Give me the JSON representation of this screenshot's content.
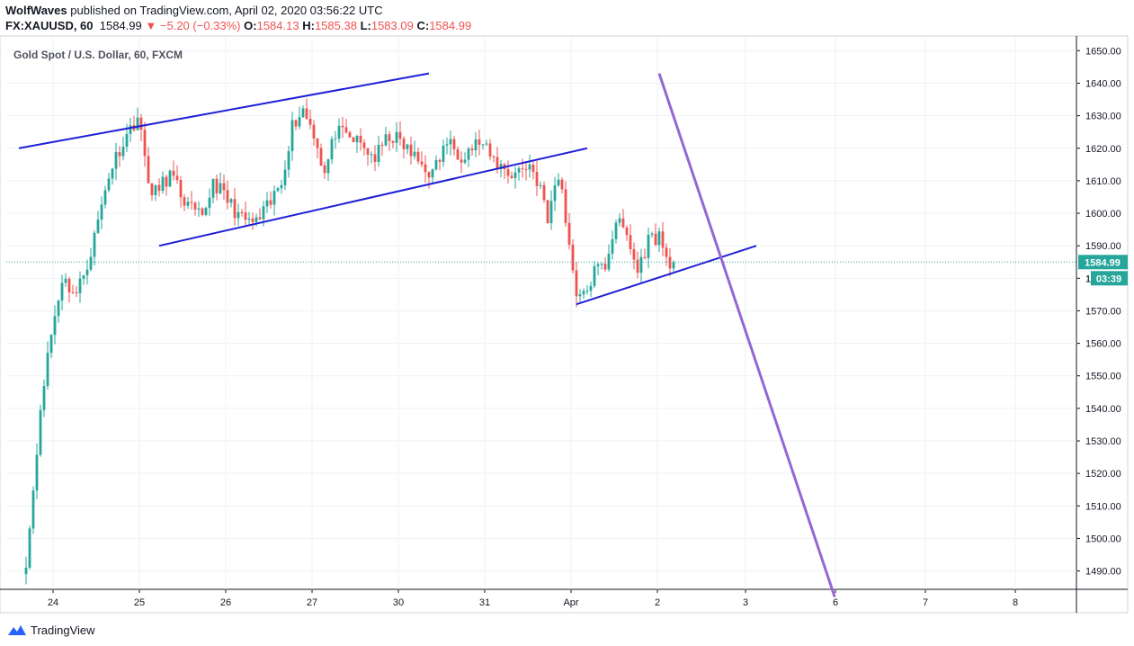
{
  "header": {
    "author": "WolfWaves",
    "published_text": "published on TradingView.com, April 02, 2020 03:56:22 UTC",
    "symbol": "FX:XAUUSD, 60",
    "last": "1584.99",
    "change_arrow": "▼",
    "change": "−5.20 (−0.33%)",
    "o_label": "O:",
    "o_value": "1584.13",
    "h_label": "H:",
    "h_value": "1585.38",
    "l_label": "L:",
    "l_value": "1583.09",
    "c_label": "C:",
    "c_value": "1584.99"
  },
  "footer": {
    "brand": "TradingView"
  },
  "colors": {
    "up": "#26a69a",
    "down": "#ef5350",
    "trendline": "#1f1fd6",
    "projection": "#9567d2",
    "price_line": "#26a69a",
    "grid": "#eef1f5"
  },
  "chart_data": {
    "type": "candlestick",
    "title": "Gold Spot / U.S. Dollar, 60, FXCM",
    "ylim": [
      1482,
      1652
    ],
    "y_ticks": [
      "1650.00",
      "1640.00",
      "1630.00",
      "1620.00",
      "1610.00",
      "1600.00",
      "1590.00",
      "1580.00",
      "1570.00",
      "1560.00",
      "1550.00",
      "1540.00",
      "1530.00",
      "1520.00",
      "1510.00",
      "1500.00",
      "1490.00"
    ],
    "x_ticks": [
      {
        "label": "24",
        "bar": 7.5
      },
      {
        "label": "25",
        "bar": 31.5
      },
      {
        "label": "26",
        "bar": 55.5
      },
      {
        "label": "27",
        "bar": 79.5
      },
      {
        "label": "30",
        "bar": 103.5
      },
      {
        "label": "31",
        "bar": 127.5
      },
      {
        "label": "Apr",
        "bar": 151.5
      },
      {
        "label": "2",
        "bar": 175.5
      },
      {
        "label": "3",
        "bar": 200.0
      },
      {
        "label": "6",
        "bar": 225.0
      },
      {
        "label": "7",
        "bar": 250.0
      },
      {
        "label": "8",
        "bar": 275.0
      }
    ],
    "last_price": 1584.99,
    "last_price_label": "1584.99",
    "countdown_label": "03:39",
    "countdown_prefix": "1",
    "anchors": [
      {
        "bar": 0,
        "price": 1491
      },
      {
        "bar": 3,
        "price": 1528
      },
      {
        "bar": 6,
        "price": 1557
      },
      {
        "bar": 10,
        "price": 1580
      },
      {
        "bar": 14,
        "price": 1575
      },
      {
        "bar": 18,
        "price": 1588
      },
      {
        "bar": 23,
        "price": 1612
      },
      {
        "bar": 26,
        "price": 1620
      },
      {
        "bar": 31,
        "price": 1630
      },
      {
        "bar": 35,
        "price": 1605
      },
      {
        "bar": 40,
        "price": 1612
      },
      {
        "bar": 45,
        "price": 1602
      },
      {
        "bar": 49,
        "price": 1598
      },
      {
        "bar": 52,
        "price": 1610
      },
      {
        "bar": 56,
        "price": 1604
      },
      {
        "bar": 60,
        "price": 1598
      },
      {
        "bar": 64,
        "price": 1597
      },
      {
        "bar": 68,
        "price": 1603
      },
      {
        "bar": 71,
        "price": 1610
      },
      {
        "bar": 74,
        "price": 1627
      },
      {
        "bar": 77,
        "price": 1632
      },
      {
        "bar": 80,
        "price": 1625
      },
      {
        "bar": 83,
        "price": 1612
      },
      {
        "bar": 86,
        "price": 1625
      },
      {
        "bar": 92,
        "price": 1622
      },
      {
        "bar": 97,
        "price": 1617
      },
      {
        "bar": 101,
        "price": 1624
      },
      {
        "bar": 104,
        "price": 1622
      },
      {
        "bar": 108,
        "price": 1617
      },
      {
        "bar": 113,
        "price": 1612
      },
      {
        "bar": 117,
        "price": 1622
      },
      {
        "bar": 121,
        "price": 1618
      },
      {
        "bar": 126,
        "price": 1622
      },
      {
        "bar": 130,
        "price": 1616
      },
      {
        "bar": 135,
        "price": 1612
      },
      {
        "bar": 140,
        "price": 1615
      },
      {
        "bar": 143,
        "price": 1608
      },
      {
        "bar": 145,
        "price": 1597
      },
      {
        "bar": 147,
        "price": 1610
      },
      {
        "bar": 149,
        "price": 1608
      },
      {
        "bar": 151,
        "price": 1590
      },
      {
        "bar": 153,
        "price": 1576
      },
      {
        "bar": 155,
        "price": 1574
      },
      {
        "bar": 158,
        "price": 1582
      },
      {
        "bar": 161,
        "price": 1584
      },
      {
        "bar": 164,
        "price": 1598
      },
      {
        "bar": 167,
        "price": 1593
      },
      {
        "bar": 170,
        "price": 1582
      },
      {
        "bar": 173,
        "price": 1592
      },
      {
        "bar": 176,
        "price": 1593
      },
      {
        "bar": 178,
        "price": 1586
      },
      {
        "bar": 180,
        "price": 1585
      }
    ],
    "trendlines": [
      {
        "name": "upper-channel-line-1",
        "from": {
          "bar": -2,
          "price": 1620
        },
        "to": {
          "bar": 112,
          "price": 1643
        }
      },
      {
        "name": "lower-channel-line-1",
        "from": {
          "bar": 37,
          "price": 1590
        },
        "to": {
          "bar": 156,
          "price": 1620
        }
      },
      {
        "name": "support-line",
        "from": {
          "bar": 153,
          "price": 1572
        },
        "to": {
          "bar": 203,
          "price": 1590
        }
      }
    ],
    "projection": {
      "from": {
        "bar": 176,
        "price": 1643
      },
      "to": {
        "bar": 224.8,
        "price": 1482
      }
    }
  }
}
